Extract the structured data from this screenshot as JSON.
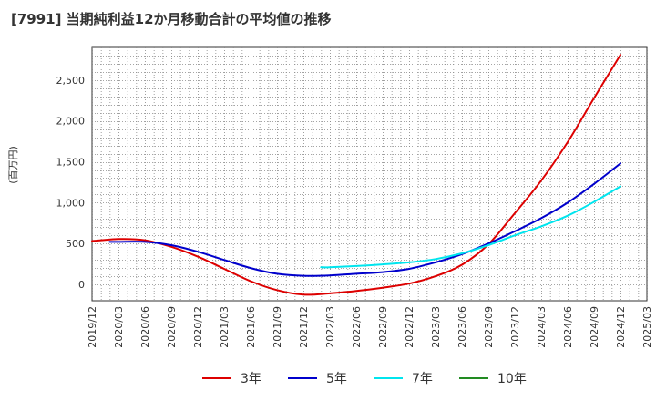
{
  "chart_data": {
    "type": "line",
    "title": "[7991]  当期純利益12か月移動合計の平均値の推移",
    "ylabel": "(百万円)",
    "xlabel": "",
    "ylim": [
      -200,
      2900
    ],
    "yticks": [
      0,
      500,
      1000,
      1500,
      2000,
      2500
    ],
    "ytick_labels": [
      "0",
      "500",
      "1,000",
      "1,500",
      "2,000",
      "2,500"
    ],
    "x_range": [
      0,
      60
    ],
    "xticks": [
      0,
      3,
      6,
      9,
      12,
      15,
      18,
      21,
      24,
      27,
      30,
      33,
      36,
      39,
      42,
      45,
      48,
      51,
      54,
      57,
      60,
      63
    ],
    "xtick_labels": [
      "2019/12",
      "2020/03",
      "2020/06",
      "2020/09",
      "2020/12",
      "2021/03",
      "2021/06",
      "2021/09",
      "2021/12",
      "2022/03",
      "2022/06",
      "2022/09",
      "2022/12",
      "2023/03",
      "2023/06",
      "2023/09",
      "2023/12",
      "2024/03",
      "2024/06",
      "2024/09",
      "2024/12",
      "2025/03"
    ],
    "series": [
      {
        "name": "3年",
        "color": "#dd0000",
        "x": [
          0,
          3,
          6,
          9,
          12,
          15,
          18,
          21,
          24,
          27,
          30,
          33,
          36,
          39,
          42,
          45,
          48,
          51,
          54,
          57,
          60
        ],
        "y": [
          530,
          555,
          540,
          460,
          340,
          190,
          40,
          -70,
          -125,
          -110,
          -80,
          -40,
          10,
          100,
          240,
          490,
          870,
          1270,
          1740,
          2280,
          2810
        ]
      },
      {
        "name": "5年",
        "color": "#0000cc",
        "x": [
          2,
          3,
          6,
          9,
          12,
          15,
          18,
          21,
          24,
          27,
          30,
          33,
          36,
          39,
          42,
          45,
          48,
          51,
          54,
          57,
          60
        ],
        "y": [
          520,
          520,
          520,
          480,
          400,
          300,
          200,
          130,
          105,
          110,
          130,
          150,
          190,
          270,
          370,
          500,
          650,
          810,
          1000,
          1230,
          1480
        ]
      },
      {
        "name": "7年",
        "color": "#00e5ee",
        "x": [
          26,
          27,
          30,
          33,
          36,
          39,
          42,
          45,
          48,
          51,
          54,
          57,
          60
        ],
        "y": [
          210,
          210,
          225,
          245,
          270,
          310,
          380,
          480,
          600,
          710,
          840,
          1010,
          1200
        ]
      },
      {
        "name": "10年",
        "color": "#228b22",
        "x": [],
        "y": []
      }
    ],
    "legend_position": "bottom",
    "grid": true
  }
}
